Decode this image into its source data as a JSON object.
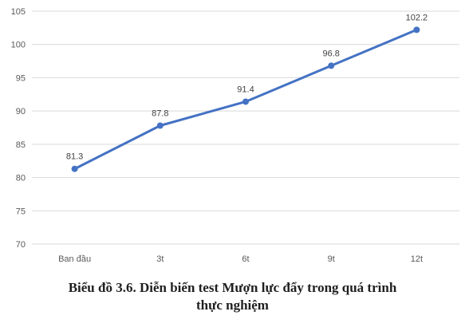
{
  "chart_data": {
    "type": "line",
    "categories": [
      "Ban đầu",
      "3t",
      "6t",
      "9t",
      "12t"
    ],
    "series": [
      {
        "values": [
          81.3,
          87.8,
          91.4,
          96.8,
          102.2
        ],
        "color": "#4472c4"
      }
    ],
    "data_labels": [
      "81.3",
      "87.8",
      "91.4",
      "96.8",
      "102.2"
    ],
    "ylim": [
      70,
      105
    ],
    "yticks": [
      70,
      75,
      80,
      85,
      90,
      95,
      100,
      105
    ],
    "ytick_labels": [
      "70",
      "75",
      "80",
      "85",
      "90",
      "95",
      "100",
      "105"
    ],
    "grid": true,
    "gridline_color": "#d9d9d9",
    "title_line1": "Biểu đồ 3.6. Diễn biến test Mượn lực đẩy trong quá trình",
    "title_line2": "thực nghiệm"
  }
}
